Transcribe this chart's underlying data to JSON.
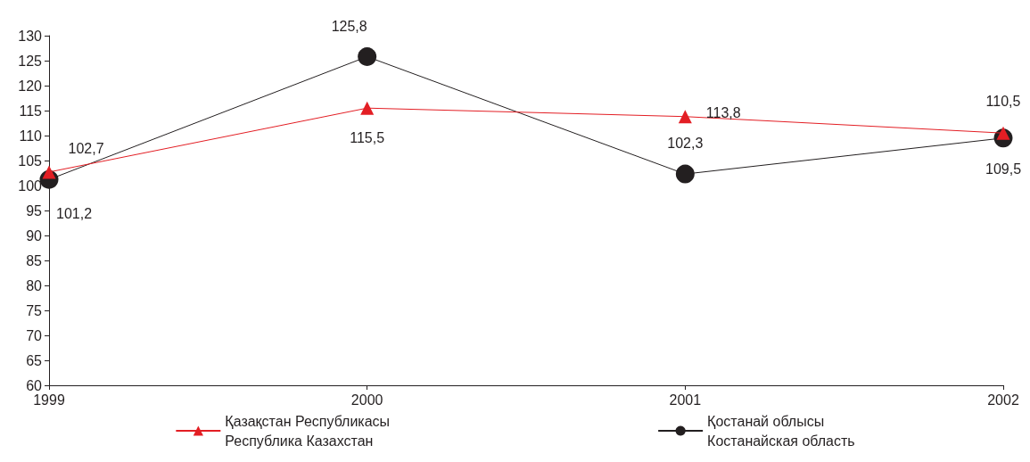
{
  "chart_data": {
    "type": "line",
    "categories": [
      "1999",
      "2000",
      "2001",
      "2002"
    ],
    "series": [
      {
        "name": "Қазақстан Республикасы\nРеспублика Казахстан",
        "color": "#e31e24",
        "marker": "triangle",
        "values": [
          102.7,
          115.5,
          113.8,
          110.5
        ],
        "value_labels": [
          "102,7",
          "115,5",
          "113,8",
          "110,5"
        ]
      },
      {
        "name": "Қостанай облысы\nКостанайская область",
        "color": "#231f20",
        "marker": "circle",
        "values": [
          101.2,
          125.8,
          102.3,
          109.5
        ],
        "value_labels": [
          "101,2",
          "125,8",
          "102,3",
          "109,5"
        ]
      }
    ],
    "ylim": [
      60,
      130
    ],
    "yticks": [
      60,
      65,
      70,
      75,
      80,
      85,
      90,
      95,
      100,
      105,
      110,
      115,
      120,
      125,
      130
    ],
    "grid": false,
    "legend": "bottom",
    "line_style": "solid"
  }
}
